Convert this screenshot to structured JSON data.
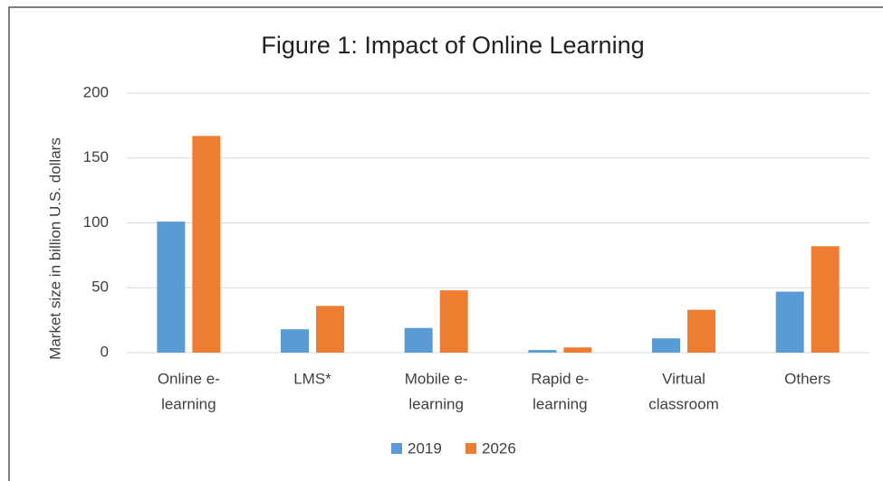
{
  "chart_data": {
    "type": "bar",
    "title": "Figure 1: Impact of Online Learning",
    "y_label": "Market size in billion U.S. dollars",
    "categories": [
      [
        "Online e-",
        "learning"
      ],
      [
        "LMS*"
      ],
      [
        "Mobile e-",
        "learning"
      ],
      [
        "Rapid e-",
        "learning"
      ],
      [
        "Virtual",
        "classroom"
      ],
      [
        "Others"
      ]
    ],
    "series": [
      {
        "name": "2019",
        "color": "#5b9bd5",
        "values": [
          101,
          18,
          19,
          2,
          11,
          47
        ]
      },
      {
        "name": "2026",
        "color": "#ed7d31",
        "values": [
          167,
          36,
          48,
          4,
          33,
          82
        ]
      }
    ],
    "ylim": [
      0,
      200
    ],
    "yticks": [
      0,
      50,
      100,
      150,
      200
    ],
    "grid": true,
    "legend": "bottom"
  }
}
